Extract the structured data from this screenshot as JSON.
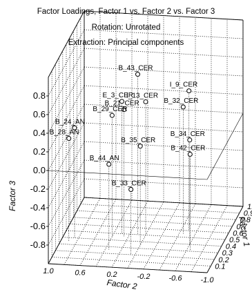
{
  "chart_data": {
    "type": "scatter",
    "title": "Factor Loadings, Factor 1 vs. Factor 2 vs. Factor 3",
    "subtitle1": "Rotation: Unrotated",
    "subtitle2": "Extraction: Principal components",
    "xlabel": "Factor 2",
    "ylabel": "Factor 1",
    "zlabel": "Factor 3",
    "grid": true,
    "ticks_f2": [
      "1.0",
      "0.6",
      "0.2",
      "-0.2",
      "-0.6",
      "-1.0"
    ],
    "ticks_f1": [
      "1.0",
      "0.9",
      "0.8",
      "0.7",
      "0.6",
      "0.5",
      "0.4",
      "0.3",
      "0.2",
      "0.1"
    ],
    "ticks_z": [
      "0.8",
      "0.6",
      "0.4",
      "0.2",
      "0.0",
      "-0.2",
      "-0.4",
      "-0.6",
      "-0.8"
    ],
    "points": [
      {
        "label": "B_43_CER",
        "f2": 0.1,
        "f1": 0.5,
        "f3": 0.72
      },
      {
        "label": "I_9_CER",
        "f2": -0.5,
        "f1": 0.6,
        "f3": 0.5
      },
      {
        "label": "E_3_CER",
        "f2": 0.3,
        "f1": 0.5,
        "f3": 0.42
      },
      {
        "label": "B_21_CER",
        "f2": 0.25,
        "f1": 0.45,
        "f3": 0.37
      },
      {
        "label": "I_13_CER",
        "f2": 0.0,
        "f1": 0.5,
        "f3": 0.43
      },
      {
        "label": "B_32_CER",
        "f2": -0.45,
        "f1": 0.55,
        "f3": 0.36
      },
      {
        "label": "B_29_CER",
        "f2": 0.4,
        "f1": 0.45,
        "f3": 0.3
      },
      {
        "label": "B_24_AN",
        "f2": 0.85,
        "f1": 0.4,
        "f3": 0.18
      },
      {
        "label": "B_34_CER",
        "f2": -0.6,
        "f1": 0.4,
        "f3": 0.12
      },
      {
        "label": "B_28_AN",
        "f2": 0.9,
        "f1": 0.35,
        "f3": 0.1
      },
      {
        "label": "B_35_CER",
        "f2": 0.0,
        "f1": 0.35,
        "f3": 0.06
      },
      {
        "label": "B_42_CER",
        "f2": -0.65,
        "f1": 0.3,
        "f3": 0.04
      },
      {
        "label": "B_44_AN",
        "f2": 0.35,
        "f1": 0.25,
        "f3": -0.08
      },
      {
        "label": "B_33_CER",
        "f2": 0.05,
        "f1": 0.2,
        "f3": -0.3
      }
    ]
  }
}
